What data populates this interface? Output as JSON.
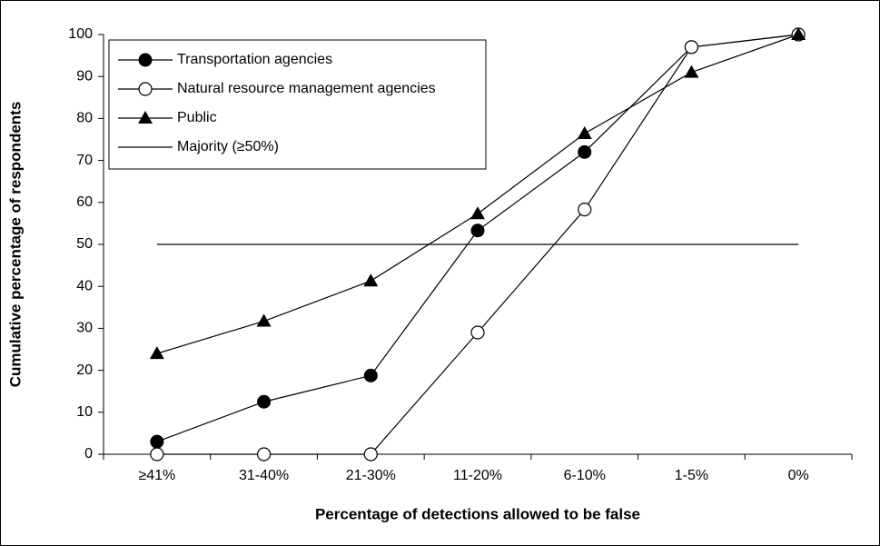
{
  "chart_data": {
    "type": "line",
    "xlabel": "Percentage of detections allowed to be false",
    "ylabel": "Cumulative percentage of respondents",
    "categories": [
      "≥41%",
      "31-40%",
      "21-30%",
      "11-20%",
      "6-10%",
      "1-5%",
      "0%"
    ],
    "series": [
      {
        "name": "Transportation agencies",
        "color": "#000000",
        "marker": "filled-circle",
        "values": [
          3,
          12.5,
          18.75,
          53.3,
          72,
          97,
          100
        ]
      },
      {
        "name": "Natural resource management agencies",
        "color": "#000000",
        "marker": "open-circle",
        "values": [
          0,
          0,
          0,
          29,
          58.3,
          97,
          100
        ]
      },
      {
        "name": "Public",
        "color": "#000000",
        "marker": "triangle",
        "values": [
          24,
          31.7,
          41.3,
          57.3,
          76.4,
          91,
          100
        ]
      },
      {
        "name": "Majority (≥50%)",
        "color": "#000000",
        "marker": "none",
        "values": [
          50,
          50,
          50,
          50,
          50,
          50,
          50
        ]
      }
    ],
    "ylim": [
      0,
      100
    ],
    "yticks": [
      0,
      10,
      20,
      30,
      40,
      50,
      60,
      70,
      80,
      90,
      100
    ],
    "legend": "upper left",
    "grid": false
  }
}
